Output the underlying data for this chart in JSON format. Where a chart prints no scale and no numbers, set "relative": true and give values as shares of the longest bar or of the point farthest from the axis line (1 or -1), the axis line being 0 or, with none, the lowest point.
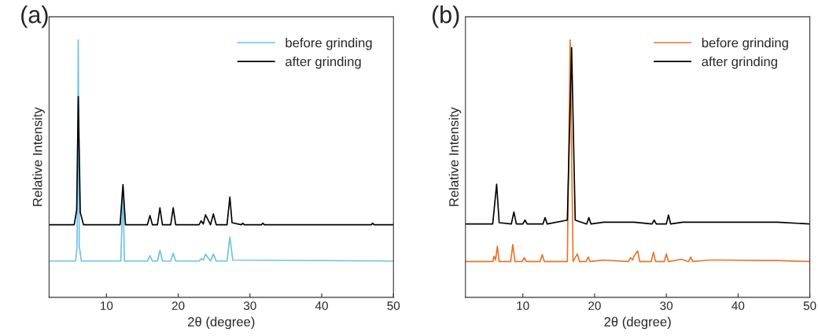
{
  "chart_data": [
    {
      "type": "line",
      "relative": true,
      "xlabel": "2θ (degree)",
      "ylabel": "Relative Intensity",
      "annotations": [
        "(a)"
      ],
      "xlim": [
        2,
        50
      ],
      "xticks": [
        10,
        20,
        30,
        40,
        50
      ],
      "legend": "top right",
      "grid": false,
      "series": [
        {
          "name": "before grinding",
          "color": "#6ec1e4",
          "x": [
            2,
            5.7,
            5.9,
            6.07,
            6.2,
            6.5,
            12.0,
            12.3,
            12.5,
            15.7,
            16.06,
            16.4,
            17.1,
            17.45,
            17.8,
            18.95,
            19.3,
            19.65,
            22.9,
            23.2,
            23.5,
            23.8,
            24.5,
            24.9,
            25.3,
            26.8,
            27.2,
            27.6,
            50
          ],
          "values": [
            0.141,
            0.141,
            0.2,
            1,
            0.2,
            0.141,
            0.141,
            0.43,
            0.141,
            0.141,
            0.162,
            0.141,
            0.141,
            0.183,
            0.141,
            0.141,
            0.171,
            0.141,
            0.141,
            0.15,
            0.145,
            0.168,
            0.141,
            0.168,
            0.141,
            0.141,
            0.234,
            0.145,
            0.141
          ]
        },
        {
          "name": "after grinding",
          "color": "#000000",
          "x": [
            2,
            5.5,
            5.85,
            6.07,
            6.35,
            6.8,
            11.9,
            12.3,
            12.65,
            15.7,
            16.06,
            16.4,
            17.1,
            17.45,
            17.8,
            18.95,
            19.3,
            19.65,
            22.9,
            23.2,
            23.5,
            23.8,
            24.5,
            24.9,
            25.3,
            26.8,
            27.2,
            27.5,
            28.8,
            29.0,
            29.2,
            31.6,
            31.8,
            32.0,
            46.9,
            47.1,
            47.3,
            50
          ],
          "values": [
            0.282,
            0.282,
            0.34,
            0.78,
            0.33,
            0.282,
            0.282,
            0.438,
            0.282,
            0.282,
            0.318,
            0.282,
            0.282,
            0.348,
            0.282,
            0.282,
            0.348,
            0.282,
            0.282,
            0.297,
            0.285,
            0.321,
            0.282,
            0.324,
            0.282,
            0.282,
            0.39,
            0.29,
            0.282,
            0.288,
            0.282,
            0.282,
            0.288,
            0.282,
            0.282,
            0.288,
            0.282,
            0.282
          ]
        }
      ]
    },
    {
      "type": "line",
      "relative": true,
      "xlabel": "2θ (degree)",
      "ylabel": "Relative Intensity",
      "annotations": [
        "(b)"
      ],
      "xlim": [
        2,
        50
      ],
      "xticks": [
        10,
        20,
        30,
        40,
        50
      ],
      "legend": "top right",
      "grid": false,
      "series": [
        {
          "name": "before grinding",
          "color": "#e8742c",
          "x": [
            2,
            5.8,
            6.0,
            6.2,
            6.45,
            6.7,
            8.3,
            8.6,
            8.9,
            9.9,
            10.2,
            10.5,
            12.4,
            12.7,
            13.0,
            16.2,
            16.6,
            17.0,
            17.6,
            17.9,
            18.8,
            19.1,
            19.4,
            21.2,
            24.7,
            25.0,
            25.3,
            25.5,
            26.0,
            26.3,
            27.9,
            28.2,
            28.5,
            29.7,
            30.0,
            30.3,
            32.1,
            33.1,
            33.4,
            33.7,
            36.0,
            37.5,
            45.5,
            50
          ],
          "values": [
            0.139,
            0.139,
            0.16,
            0.145,
            0.199,
            0.139,
            0.139,
            0.205,
            0.139,
            0.139,
            0.154,
            0.139,
            0.139,
            0.166,
            0.139,
            0.139,
            1,
            0.139,
            0.169,
            0.139,
            0.139,
            0.157,
            0.139,
            0.145,
            0.139,
            0.154,
            0.145,
            0.16,
            0.181,
            0.139,
            0.139,
            0.175,
            0.139,
            0.139,
            0.169,
            0.139,
            0.148,
            0.139,
            0.157,
            0.139,
            0.145,
            0.145,
            0.143,
            0.139
          ]
        },
        {
          "name": "after grinding",
          "color": "#000000",
          "x": [
            2,
            5.8,
            6.35,
            6.7,
            8.4,
            8.75,
            9.1,
            10.0,
            10.3,
            10.6,
            12.8,
            13.1,
            13.4,
            16.2,
            16.8,
            17.3,
            18.9,
            19.2,
            19.5,
            21.3,
            24.7,
            25.5,
            28.0,
            28.3,
            28.6,
            30.0,
            30.3,
            30.6,
            32.3,
            45.5,
            50
          ],
          "values": [
            0.285,
            0.285,
            0.44,
            0.29,
            0.285,
            0.332,
            0.285,
            0.285,
            0.3,
            0.285,
            0.285,
            0.31,
            0.285,
            0.3,
            0.97,
            0.3,
            0.285,
            0.31,
            0.285,
            0.292,
            0.292,
            0.292,
            0.285,
            0.3,
            0.285,
            0.285,
            0.32,
            0.285,
            0.292,
            0.292,
            0.285
          ]
        }
      ]
    }
  ]
}
